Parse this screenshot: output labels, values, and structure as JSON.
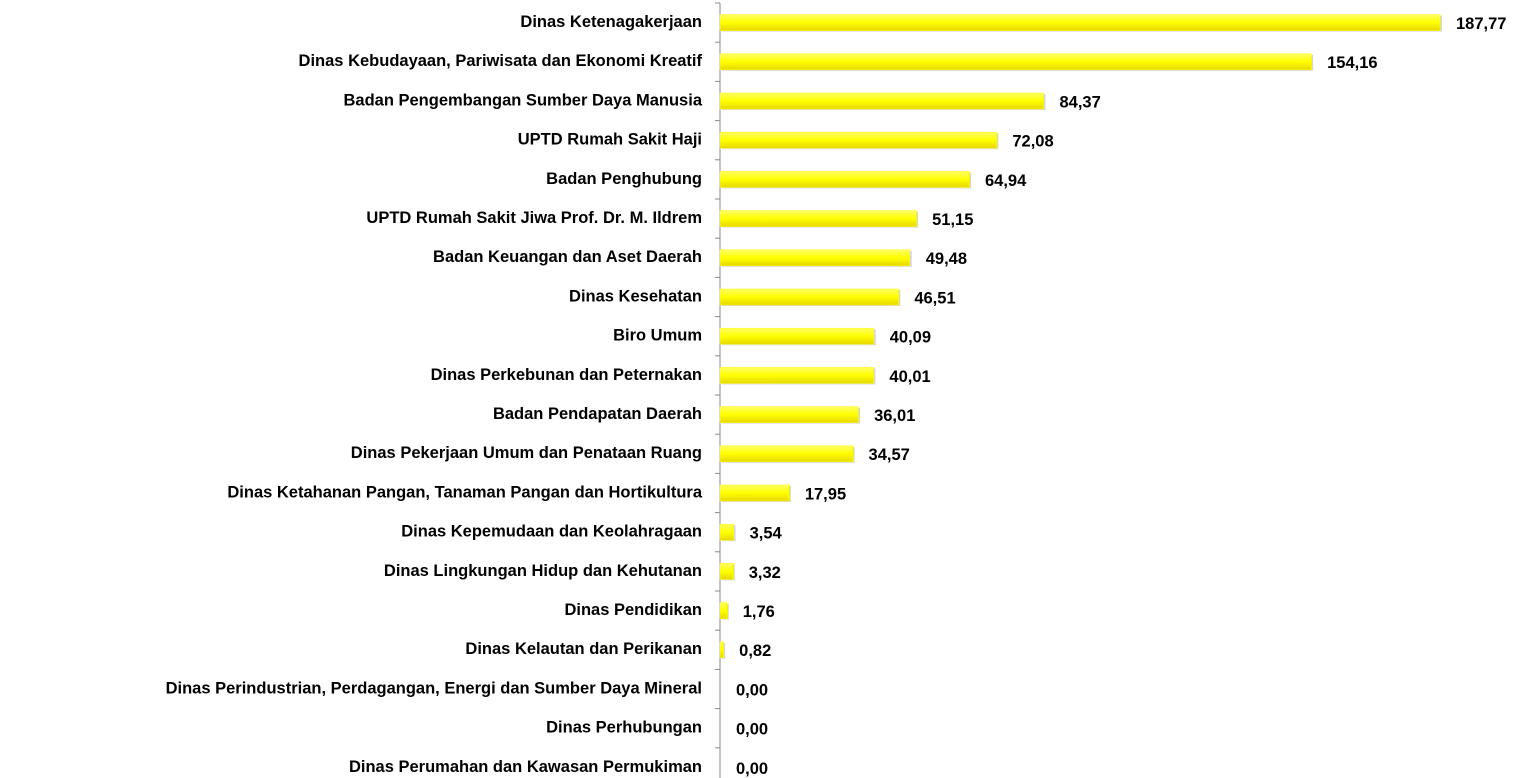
{
  "chart_data": {
    "type": "barh",
    "categories": [
      "Dinas Ketenagakerjaan",
      "Dinas Kebudayaan, Pariwisata dan Ekonomi Kreatif",
      "Badan Pengembangan Sumber Daya Manusia",
      "UPTD Rumah Sakit Haji",
      "Badan Penghubung",
      "UPTD Rumah Sakit Jiwa Prof. Dr. M. Ildrem",
      "Badan Keuangan dan Aset Daerah",
      "Dinas Kesehatan",
      "Biro Umum",
      "Dinas Perkebunan dan Peternakan",
      "Badan Pendapatan Daerah",
      "Dinas Pekerjaan Umum dan Penataan Ruang",
      "Dinas Ketahanan Pangan, Tanaman Pangan dan Hortikultura",
      "Dinas Kepemudaan dan Keolahragaan",
      "Dinas Lingkungan Hidup dan Kehutanan",
      "Dinas Pendidikan",
      "Dinas Kelautan dan Perikanan",
      "Dinas Perindustrian, Perdagangan, Energi dan Sumber Daya Mineral",
      "Dinas Perhubungan",
      "Dinas Perumahan dan Kawasan Permukiman"
    ],
    "values": [
      187.77,
      154.16,
      84.37,
      72.08,
      64.94,
      51.15,
      49.48,
      46.51,
      40.09,
      40.01,
      36.01,
      34.57,
      17.95,
      3.54,
      3.32,
      1.76,
      0.82,
      0.0,
      0.0,
      0.0
    ],
    "value_labels": [
      "187,77",
      "154,16",
      "84,37",
      "72,08",
      "64,94",
      "51,15",
      "49,48",
      "46,51",
      "40,09",
      "40,01",
      "36,01",
      "34,57",
      "17,95",
      "3,54",
      "3,32",
      "1,76",
      "0,82",
      "0,00",
      "0,00",
      "0,00"
    ],
    "color": "#ffff00"
  }
}
